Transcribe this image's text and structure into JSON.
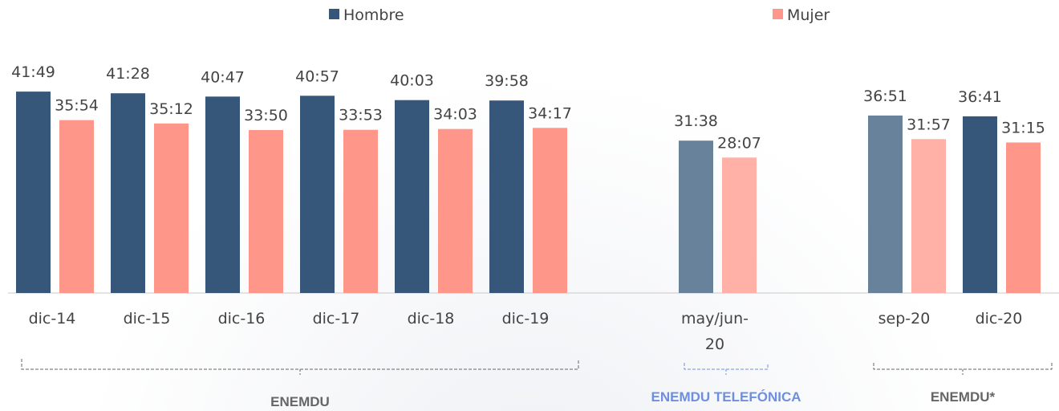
{
  "chart_data": {
    "type": "bar",
    "series": [
      {
        "name": "Hombre",
        "color": "#37577a"
      },
      {
        "name": "Mujer",
        "color": "#fe968a"
      }
    ],
    "groups": [
      {
        "label": "ENEMDU",
        "label_color": "#666666",
        "categories": [
          "dic-14",
          "dic-15",
          "dic-16",
          "dic-17",
          "dic-18",
          "dic-19"
        ],
        "series": [
          {
            "values": [
              41.817,
              41.467,
              40.783,
              40.95,
              40.05,
              39.967
            ],
            "value_labels": [
              "41:49",
              "41:28",
              "40:47",
              "40:57",
              "40:03",
              "39:58"
            ],
            "colors": [
              "#37577a",
              "#37577a",
              "#37577a",
              "#37577a",
              "#37577a",
              "#37577a"
            ]
          },
          {
            "values": [
              35.9,
              35.2,
              33.833,
              33.883,
              34.05,
              34.283
            ],
            "value_labels": [
              "35:54",
              "35:12",
              "33:50",
              "33:53",
              "34:03",
              "34:17"
            ],
            "colors": [
              "#fe968a",
              "#fe968a",
              "#fe968a",
              "#fe968a",
              "#fe968a",
              "#fe968a"
            ]
          }
        ]
      },
      {
        "label": "ENEMDU TELEFÓNICA",
        "label_color": "#6e8ee0",
        "categories": [
          "may/jun-20"
        ],
        "series": [
          {
            "values": [
              31.633
            ],
            "value_labels": [
              "31:38"
            ],
            "colors": [
              "#68829c"
            ]
          },
          {
            "values": [
              28.117
            ],
            "value_labels": [
              "28:07"
            ],
            "colors": [
              "#ffb1a8"
            ]
          }
        ]
      },
      {
        "label": "ENEMDU*",
        "label_color": "#666666",
        "categories": [
          "sep-20",
          "dic-20"
        ],
        "series": [
          {
            "values": [
              36.85,
              36.683
            ],
            "value_labels": [
              "36:51",
              "36:41"
            ],
            "colors": [
              "#68829c",
              "#37577a"
            ]
          },
          {
            "values": [
              31.95,
              31.25
            ],
            "value_labels": [
              "31:57",
              "31:15"
            ],
            "colors": [
              "#ffb1a8",
              "#fe968a"
            ]
          }
        ]
      }
    ]
  }
}
